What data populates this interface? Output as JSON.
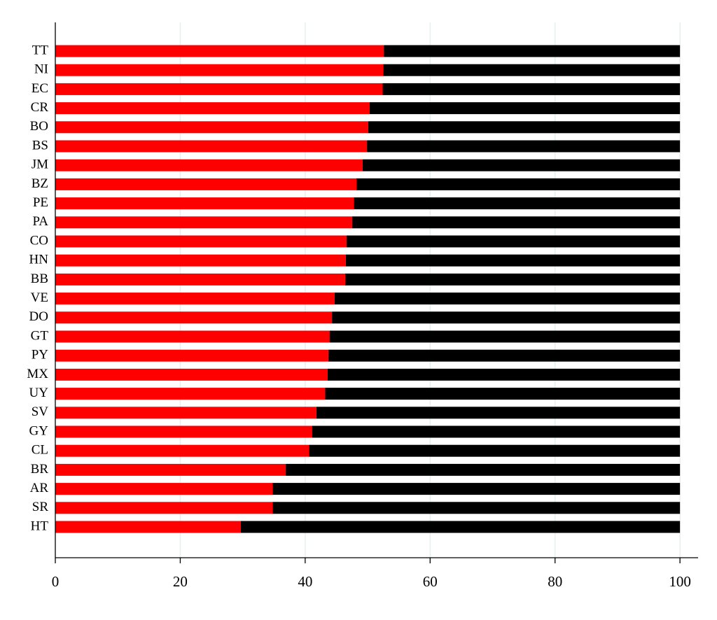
{
  "chart_data": {
    "type": "bar",
    "orientation": "horizontal",
    "stacked": true,
    "grid": true,
    "categories": [
      "TT",
      "NI",
      "EC",
      "CR",
      "BO",
      "BS",
      "JM",
      "BZ",
      "PE",
      "PA",
      "CO",
      "HN",
      "BB",
      "VE",
      "DO",
      "GT",
      "PY",
      "MX",
      "UY",
      "SV",
      "GY",
      "CL",
      "BR",
      "AR",
      "SR",
      "HT"
    ],
    "series": [
      {
        "color": "#ff0000",
        "values": [
          52.6,
          52.5,
          52.4,
          50.3,
          50.1,
          49.9,
          49.2,
          48.2,
          47.8,
          47.5,
          46.6,
          46.5,
          46.4,
          44.7,
          44.3,
          43.9,
          43.7,
          43.6,
          43.2,
          41.8,
          41.1,
          40.6,
          36.9,
          34.8,
          34.8,
          29.7
        ]
      },
      {
        "color": "#000000",
        "values": [
          47.4,
          47.5,
          47.6,
          49.7,
          49.9,
          50.1,
          50.8,
          51.8,
          52.2,
          52.5,
          53.4,
          53.5,
          53.6,
          55.3,
          55.7,
          56.1,
          56.3,
          56.4,
          56.8,
          58.2,
          58.9,
          59.4,
          63.1,
          65.2,
          65.2,
          70.3
        ]
      }
    ],
    "xlim": [
      0,
      102.9
    ],
    "xticks": [
      0,
      20,
      40,
      60,
      80,
      100
    ]
  }
}
